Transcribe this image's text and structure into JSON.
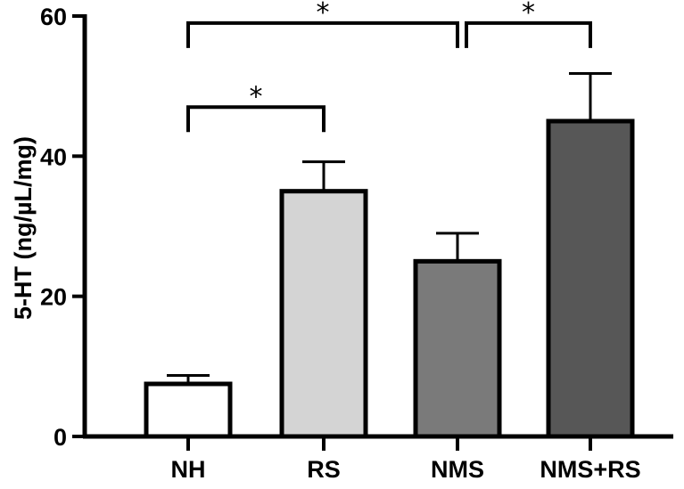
{
  "chart_data": {
    "type": "bar",
    "title": "",
    "xlabel": "",
    "ylabel": "5-HT (ng/µL/mg)",
    "ylim": [
      0,
      60
    ],
    "yticks": [
      "0",
      "20",
      "40",
      "60"
    ],
    "categories": [
      "NH",
      "RS",
      "NMS",
      "NMS+RS"
    ],
    "values": [
      7.5,
      35,
      25,
      45
    ],
    "errors": [
      1.2,
      4.2,
      4.0,
      6.8
    ],
    "bar_colors": [
      "#ffffff",
      "#d4d4d4",
      "#7a7a7a",
      "#575757"
    ],
    "significance": [
      {
        "from": "NH",
        "to": "RS",
        "label": "*",
        "y": 47
      },
      {
        "from": "NH",
        "to": "NMS",
        "label": "*",
        "y": 59
      },
      {
        "from": "NMS",
        "to": "NMS+RS",
        "label": "*",
        "y": 59
      }
    ]
  }
}
